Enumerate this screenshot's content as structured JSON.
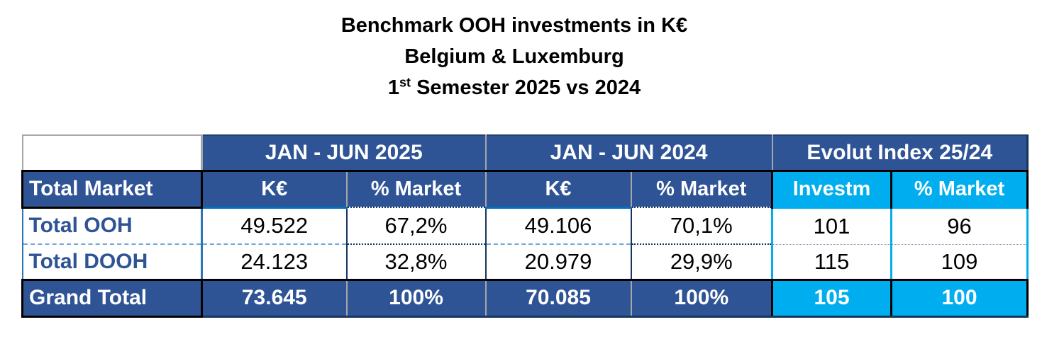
{
  "title": {
    "line1": "Benchmark OOH investments in K€",
    "line2": "Belgium & Luxemburg",
    "line3_prefix": "1",
    "line3_sup": "st",
    "line3_rest": " Semester 2025 vs 2024"
  },
  "table": {
    "col_groups": [
      {
        "label": "JAN - JUN 2025"
      },
      {
        "label": "JAN - JUN 2024"
      },
      {
        "label": "Evolut Index 25/24"
      }
    ],
    "sub_headers": {
      "row_label": "Total Market",
      "cols": [
        "K€",
        "% Market",
        "K€",
        "% Market",
        "Investm",
        "% Market"
      ]
    },
    "rows": [
      {
        "label": "Total OOH",
        "values": [
          "49.522",
          "67,2%",
          "49.106",
          "70,1%",
          "101",
          "96"
        ]
      },
      {
        "label": "Total DOOH",
        "values": [
          "24.123",
          "32,8%",
          "20.979",
          "29,9%",
          "115",
          "109"
        ]
      }
    ],
    "total_row": {
      "label": "Grand Total",
      "values": [
        "73.645",
        "100%",
        "70.085",
        "100%",
        "105",
        "100"
      ]
    }
  },
  "colors": {
    "header_dark_blue": "#2f5496",
    "index_light_blue": "#00aeef",
    "navy_border": "#17365d",
    "bright_blue_border": "#0070c0",
    "dash_dot_divider": "#6fa8dc",
    "gray_separator": "#a6a6a6"
  },
  "chart_data": {
    "type": "table",
    "title": "Benchmark OOH investments in K€ — Belgium & Luxemburg — 1st Semester 2025 vs 2024",
    "columns": [
      "Total Market",
      "JAN - JUN 2025 K€",
      "JAN - JUN 2025 % Market",
      "JAN - JUN 2024 K€",
      "JAN - JUN 2024 % Market",
      "Evolut Index 25/24 Investm",
      "Evolut Index 25/24 % Market"
    ],
    "rows": [
      [
        "Total OOH",
        49522,
        "67,2%",
        49106,
        "70,1%",
        101,
        96
      ],
      [
        "Total DOOH",
        24123,
        "32,8%",
        20979,
        "29,9%",
        115,
        109
      ],
      [
        "Grand Total",
        73645,
        "100%",
        70085,
        "100%",
        105,
        100
      ]
    ]
  }
}
